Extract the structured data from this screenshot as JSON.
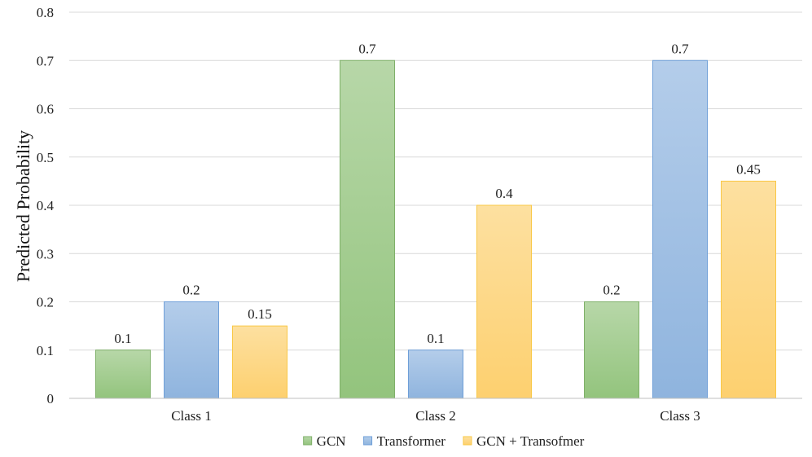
{
  "chart_data": {
    "type": "bar",
    "title": "",
    "xlabel": "",
    "ylabel": "Predicted Probability",
    "categories": [
      "Class 1",
      "Class 2",
      "Class 3"
    ],
    "ylim": [
      0,
      0.8
    ],
    "yticks": [
      0,
      0.1,
      0.2,
      0.3,
      0.4,
      0.5,
      0.6,
      0.7,
      0.8
    ],
    "ytick_labels": [
      "0",
      "0.1",
      "0.2",
      "0.3",
      "0.4",
      "0.5",
      "0.6",
      "0.7",
      "0.8"
    ],
    "grid": true,
    "legend_position": "bottom",
    "series": [
      {
        "name": "GCN",
        "values": [
          0.1,
          0.7,
          0.2
        ],
        "value_labels": [
          "0.1",
          "0.7",
          "0.2"
        ],
        "color_top": "#b7d7a8",
        "color_bottom": "#93c47d",
        "stroke": "#7fb069"
      },
      {
        "name": "Transformer",
        "values": [
          0.2,
          0.1,
          0.7
        ],
        "value_labels": [
          "0.2",
          "0.1",
          "0.7"
        ],
        "color_top": "#b4cdea",
        "color_bottom": "#8fb4de",
        "stroke": "#6f9fd8"
      },
      {
        "name": "GCN + Transofmer",
        "values": [
          0.15,
          0.4,
          0.45
        ],
        "value_labels": [
          "0.15",
          "0.4",
          "0.45"
        ],
        "color_top": "#fde0a0",
        "color_bottom": "#fdd06f",
        "stroke": "#f9c846"
      }
    ]
  }
}
